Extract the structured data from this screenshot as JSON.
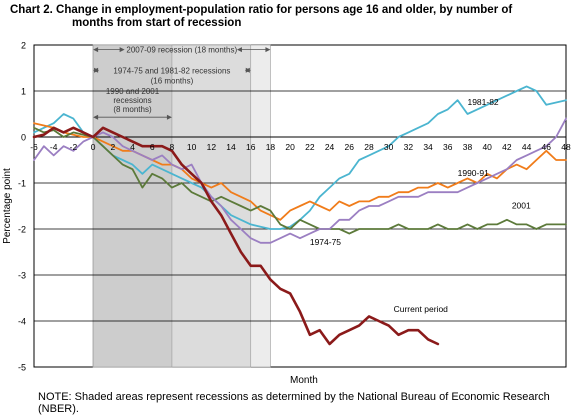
{
  "title_line1": "Chart 2. Change in employment-population ratio for persons age 16 and older, by number of",
  "title_line2": "months from start of recession",
  "note": "NOTE: Shaded areas represent recessions as determined by the National Bureau of Economic Research (NBER).",
  "chart_data": {
    "type": "line",
    "xlabel": "Month",
    "ylabel": "Percentage point",
    "xlim": [
      -6,
      48
    ],
    "ylim": [
      -5,
      2
    ],
    "x_ticks": [
      -6,
      -4,
      -2,
      0,
      2,
      4,
      6,
      8,
      10,
      12,
      14,
      16,
      18,
      20,
      22,
      24,
      26,
      28,
      30,
      32,
      34,
      36,
      38,
      40,
      42,
      44,
      46,
      48
    ],
    "x_tick_labels": [
      "-6",
      "-4",
      "-2",
      "0",
      "2",
      "4",
      "6",
      "8",
      "10",
      "12",
      "14",
      "16",
      "18",
      "20",
      "22",
      "24",
      "26",
      "28",
      "30",
      "32",
      "34",
      "36",
      "38",
      "40",
      "42",
      "44",
      "46",
      "48"
    ],
    "y_ticks": [
      -5,
      -4,
      -3,
      -2,
      -1,
      0,
      1,
      2
    ],
    "y_tick_labels": [
      "-5",
      "-4",
      "-3",
      "-2",
      "-1",
      "0",
      "1",
      "2"
    ],
    "grid": "horizontal",
    "shaded_regions": [
      {
        "from": 0,
        "to": 18,
        "color": "#ececec"
      },
      {
        "from": 0,
        "to": 16,
        "color": "#dcdcdc"
      },
      {
        "from": 0,
        "to": 8,
        "color": "#cdcdcd"
      }
    ],
    "annotations": [
      {
        "text": "2007-09 recession (18 months)",
        "from": 0,
        "to": 18,
        "y": 1.9
      },
      {
        "text": "1974-75 and 1981-82 recessions",
        "text2": "(16 months)",
        "from": 0,
        "to": 16,
        "y": 1.45
      },
      {
        "text": "1990 and 2001",
        "text2": "recessions",
        "text3": "(8 months)",
        "from": 0,
        "to": 8,
        "y": 0.8
      }
    ],
    "series": [
      {
        "name": "1981-82",
        "color": "#4bb5d0",
        "x": [
          -6,
          -5,
          -4,
          -3,
          -2,
          -1,
          0,
          1,
          2,
          3,
          4,
          5,
          6,
          7,
          8,
          9,
          10,
          11,
          12,
          13,
          14,
          15,
          16,
          17,
          18,
          19,
          20,
          21,
          22,
          23,
          24,
          25,
          26,
          27,
          28,
          29,
          30,
          31,
          32,
          33,
          34,
          35,
          36,
          37,
          38,
          39,
          40,
          41,
          42,
          43,
          44,
          45,
          46,
          47,
          48
        ],
        "y": [
          0.1,
          0.2,
          0.3,
          0.5,
          0.4,
          0.1,
          0.0,
          -0.2,
          -0.4,
          -0.5,
          -0.6,
          -0.8,
          -0.6,
          -0.7,
          -0.8,
          -0.9,
          -1.0,
          -1.1,
          -1.3,
          -1.5,
          -1.7,
          -1.8,
          -1.9,
          -1.95,
          -2.0,
          -2.0,
          -1.95,
          -1.8,
          -1.6,
          -1.3,
          -1.1,
          -0.9,
          -0.8,
          -0.5,
          -0.4,
          -0.3,
          -0.2,
          0.0,
          0.1,
          0.2,
          0.3,
          0.5,
          0.6,
          0.8,
          0.5,
          0.6,
          0.7,
          0.8,
          0.9,
          1.0,
          1.1,
          1.0,
          0.7,
          0.75,
          0.8
        ]
      },
      {
        "name": "1990-91",
        "color": "#f07c1a",
        "x": [
          -6,
          -5,
          -4,
          -3,
          -2,
          -1,
          0,
          1,
          2,
          3,
          4,
          5,
          6,
          7,
          8,
          9,
          10,
          11,
          12,
          13,
          14,
          15,
          16,
          17,
          18,
          19,
          20,
          21,
          22,
          23,
          24,
          25,
          26,
          27,
          28,
          29,
          30,
          31,
          32,
          33,
          34,
          35,
          36,
          37,
          38,
          39,
          40,
          41,
          42,
          43,
          44,
          45,
          46,
          47,
          48
        ],
        "y": [
          0.3,
          0.25,
          0.2,
          0.1,
          0.05,
          0.0,
          0.0,
          -0.1,
          -0.2,
          -0.3,
          -0.3,
          -0.4,
          -0.5,
          -0.6,
          -0.6,
          -0.7,
          -0.9,
          -1.0,
          -1.1,
          -1.0,
          -1.2,
          -1.3,
          -1.4,
          -1.6,
          -1.7,
          -1.8,
          -1.6,
          -1.5,
          -1.4,
          -1.5,
          -1.6,
          -1.4,
          -1.5,
          -1.4,
          -1.4,
          -1.3,
          -1.3,
          -1.2,
          -1.2,
          -1.1,
          -1.1,
          -1.0,
          -1.1,
          -1.0,
          -0.9,
          -1.0,
          -0.8,
          -0.9,
          -0.7,
          -0.6,
          -0.7,
          -0.5,
          -0.3,
          -0.5,
          -0.5
        ]
      },
      {
        "name": "2001",
        "color": "#5c7a3a",
        "x": [
          -6,
          -5,
          -4,
          -3,
          -2,
          -1,
          0,
          1,
          2,
          3,
          4,
          5,
          6,
          7,
          8,
          9,
          10,
          11,
          12,
          13,
          14,
          15,
          16,
          17,
          18,
          19,
          20,
          21,
          22,
          23,
          24,
          25,
          26,
          27,
          28,
          29,
          30,
          31,
          32,
          33,
          34,
          35,
          36,
          37,
          38,
          39,
          40,
          41,
          42,
          43,
          44,
          45,
          46,
          47,
          48
        ],
        "y": [
          0.2,
          0.1,
          0.15,
          0.0,
          0.1,
          0.05,
          0.0,
          -0.2,
          -0.4,
          -0.6,
          -0.7,
          -1.1,
          -0.8,
          -0.9,
          -1.1,
          -1.0,
          -1.2,
          -1.3,
          -1.4,
          -1.3,
          -1.4,
          -1.5,
          -1.6,
          -1.5,
          -1.6,
          -1.9,
          -2.0,
          -1.8,
          -1.9,
          -2.0,
          -2.0,
          -2.0,
          -2.1,
          -2.0,
          -2.0,
          -2.0,
          -2.0,
          -1.9,
          -2.0,
          -2.0,
          -2.0,
          -1.9,
          -2.0,
          -2.0,
          -1.9,
          -2.0,
          -1.9,
          -1.9,
          -1.8,
          -1.9,
          -1.9,
          -2.0,
          -1.9,
          -1.9,
          -1.9
        ]
      },
      {
        "name": "1974-75",
        "color": "#9b7fc2",
        "x": [
          -6,
          -5,
          -4,
          -3,
          -2,
          -1,
          0,
          1,
          2,
          3,
          4,
          5,
          6,
          7,
          8,
          9,
          10,
          11,
          12,
          13,
          14,
          15,
          16,
          17,
          18,
          19,
          20,
          21,
          22,
          23,
          24,
          25,
          26,
          27,
          28,
          29,
          30,
          31,
          32,
          33,
          34,
          35,
          36,
          37,
          38,
          39,
          40,
          41,
          42,
          43,
          44,
          45,
          46,
          47,
          48
        ],
        "y": [
          -0.5,
          -0.2,
          -0.4,
          -0.2,
          -0.3,
          -0.1,
          0.0,
          0.1,
          0.0,
          -0.2,
          -0.3,
          -0.4,
          -0.5,
          -0.4,
          -0.6,
          -0.7,
          -0.6,
          -1.0,
          -1.3,
          -1.5,
          -1.8,
          -2.0,
          -2.2,
          -2.3,
          -2.3,
          -2.2,
          -2.1,
          -2.2,
          -2.1,
          -2.0,
          -2.0,
          -1.8,
          -1.8,
          -1.6,
          -1.5,
          -1.5,
          -1.4,
          -1.3,
          -1.3,
          -1.3,
          -1.2,
          -1.2,
          -1.2,
          -1.2,
          -1.1,
          -1.0,
          -0.9,
          -0.8,
          -0.7,
          -0.5,
          -0.4,
          -0.3,
          -0.2,
          0.0,
          0.4
        ]
      },
      {
        "name": "Current period",
        "color": "#8b1a1a",
        "x": [
          -6,
          -5,
          -4,
          -3,
          -2,
          -1,
          0,
          1,
          2,
          3,
          4,
          5,
          6,
          7,
          8,
          9,
          10,
          11,
          12,
          13,
          14,
          15,
          16,
          17,
          18,
          19,
          20,
          21,
          22,
          23,
          24,
          25,
          26,
          27,
          28,
          29,
          30,
          31,
          32,
          33,
          34,
          35
        ],
        "y": [
          0.0,
          0.05,
          0.2,
          0.1,
          0.2,
          0.1,
          0.0,
          0.2,
          0.1,
          0.0,
          -0.1,
          -0.2,
          -0.2,
          -0.2,
          -0.3,
          -0.6,
          -0.8,
          -1.0,
          -1.4,
          -1.7,
          -2.1,
          -2.5,
          -2.8,
          -2.8,
          -3.1,
          -3.3,
          -3.4,
          -3.8,
          -4.3,
          -4.2,
          -4.5,
          -4.3,
          -4.2,
          -4.1,
          -3.9,
          -4.0,
          -4.1,
          -4.3,
          -4.2,
          -4.2,
          -4.4,
          -4.5
        ]
      }
    ],
    "series_labels": [
      {
        "text": "1981-82",
        "x": 38,
        "y": 0.7
      },
      {
        "text": "1990-91",
        "x": 37,
        "y": -0.85
      },
      {
        "text": "2001",
        "x": 42.5,
        "y": -1.55
      },
      {
        "text": "1974-75",
        "x": 22,
        "y": -2.35
      },
      {
        "text": "Current period",
        "x": 30.5,
        "y": -3.8
      }
    ]
  }
}
